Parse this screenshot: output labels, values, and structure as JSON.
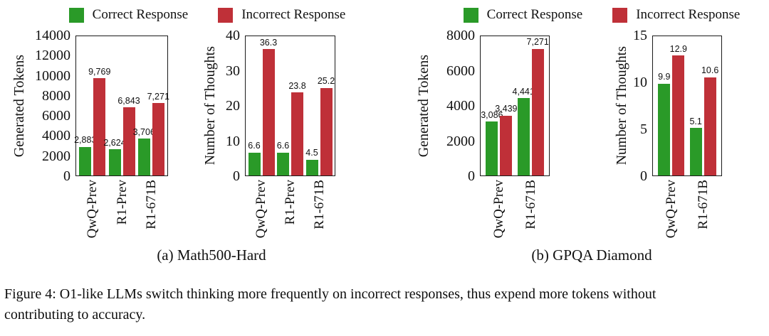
{
  "legend": {
    "correct_label": "Correct Response",
    "incorrect_label": "Incorrect Response"
  },
  "colors": {
    "correct": "#2a9a28",
    "incorrect": "#bf3038"
  },
  "subfigures": [
    {
      "label": "(a) Math500-Hard"
    },
    {
      "label": "(b) GPQA Diamond"
    }
  ],
  "figure_caption": "Figure 4: O1-like LLMs switch thinking more frequently on incorrect responses, thus expend more tokens without contributing to accuracy.",
  "chart_data": [
    {
      "type": "bar",
      "ylabel": "Generated Tokens",
      "xlabel": "",
      "categories": [
        "QwQ-Prev",
        "R1-Prev",
        "R1-671B"
      ],
      "series": [
        {
          "name": "Correct Response",
          "values": [
            2883,
            2624,
            3706
          ],
          "display_labels": [
            "2,883",
            "2,624",
            "3,706"
          ]
        },
        {
          "name": "Incorrect Response",
          "values": [
            9769,
            6843,
            7271
          ],
          "display_labels": [
            "9,769",
            "6,843",
            "7,271"
          ]
        }
      ],
      "ylim": [
        0,
        14000
      ],
      "yticks": [
        0,
        2000,
        4000,
        6000,
        8000,
        10000,
        12000,
        14000
      ],
      "grid": false
    },
    {
      "type": "bar",
      "ylabel": "Number of Thoughts",
      "xlabel": "",
      "categories": [
        "QwQ-Prev",
        "R1-Prev",
        "R1-671B"
      ],
      "series": [
        {
          "name": "Correct Response",
          "values": [
            6.6,
            6.6,
            4.5
          ],
          "display_labels": [
            "6.6",
            "6.6",
            "4.5"
          ]
        },
        {
          "name": "Incorrect Response",
          "values": [
            36.3,
            23.8,
            25.2
          ],
          "display_labels": [
            "36.3",
            "23.8",
            "25.2"
          ]
        }
      ],
      "ylim": [
        0,
        40
      ],
      "yticks": [
        0,
        10,
        20,
        30,
        40
      ],
      "grid": false
    },
    {
      "type": "bar",
      "ylabel": "Generated Tokens",
      "xlabel": "",
      "categories": [
        "QwQ-Prev",
        "R1-671B"
      ],
      "series": [
        {
          "name": "Correct Response",
          "values": [
            3086,
            4441
          ],
          "display_labels": [
            "3,086",
            "4,441"
          ]
        },
        {
          "name": "Incorrect Response",
          "values": [
            3439,
            7271
          ],
          "display_labels": [
            "3,439",
            "7,271"
          ]
        }
      ],
      "ylim": [
        0,
        8000
      ],
      "yticks": [
        0,
        2000,
        4000,
        6000,
        8000
      ],
      "grid": false
    },
    {
      "type": "bar",
      "ylabel": "Number of Thoughts",
      "xlabel": "",
      "categories": [
        "QwQ-Prev",
        "R1-671B"
      ],
      "series": [
        {
          "name": "Correct Response",
          "values": [
            9.9,
            5.1
          ],
          "display_labels": [
            "9.9",
            "5.1"
          ]
        },
        {
          "name": "Incorrect Response",
          "values": [
            12.9,
            10.6
          ],
          "display_labels": [
            "12.9",
            "10.6"
          ]
        }
      ],
      "ylim": [
        0,
        15
      ],
      "yticks": [
        0,
        5,
        10,
        15
      ],
      "grid": false
    }
  ]
}
